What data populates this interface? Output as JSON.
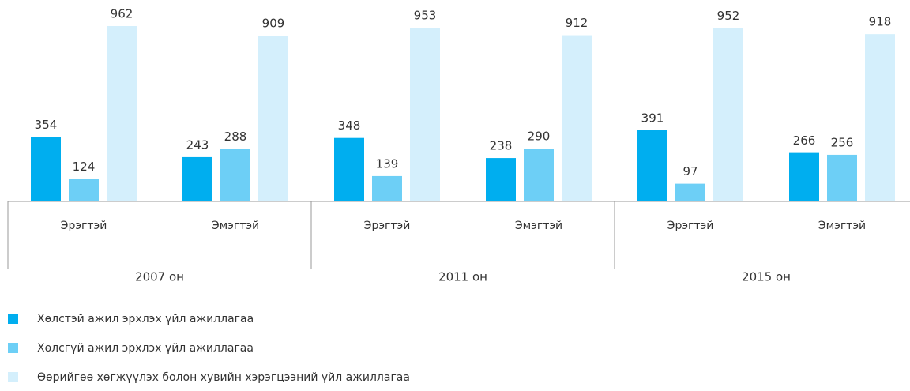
{
  "chart_data": {
    "type": "bar",
    "groups": [
      "2007 он",
      "2011 он",
      "2015 он"
    ],
    "categories": [
      "Эрэгтэй",
      "Эмэгтэй",
      "Эрэгтэй",
      "Эмэгтэй",
      "Эрэгтэй",
      "Эмэгтэй"
    ],
    "series": [
      {
        "name": "Хөлстэй ажил эрхлэх үйл ажиллагаа",
        "color": "#00aeef",
        "values": [
          354,
          243,
          348,
          238,
          391,
          266
        ]
      },
      {
        "name": "Хөлсгүй ажил эрхлэх үйл ажиллагаа",
        "color": "#6dcff6",
        "values": [
          124,
          288,
          139,
          290,
          97,
          256
        ]
      },
      {
        "name": "Өөрийгөө хөгжүүлэх болон хувийн хэрэгцээний үйл ажиллагаа",
        "color": "#d4effc",
        "values": [
          962,
          909,
          953,
          912,
          952,
          918
        ]
      }
    ],
    "legend": "bottom-left"
  }
}
